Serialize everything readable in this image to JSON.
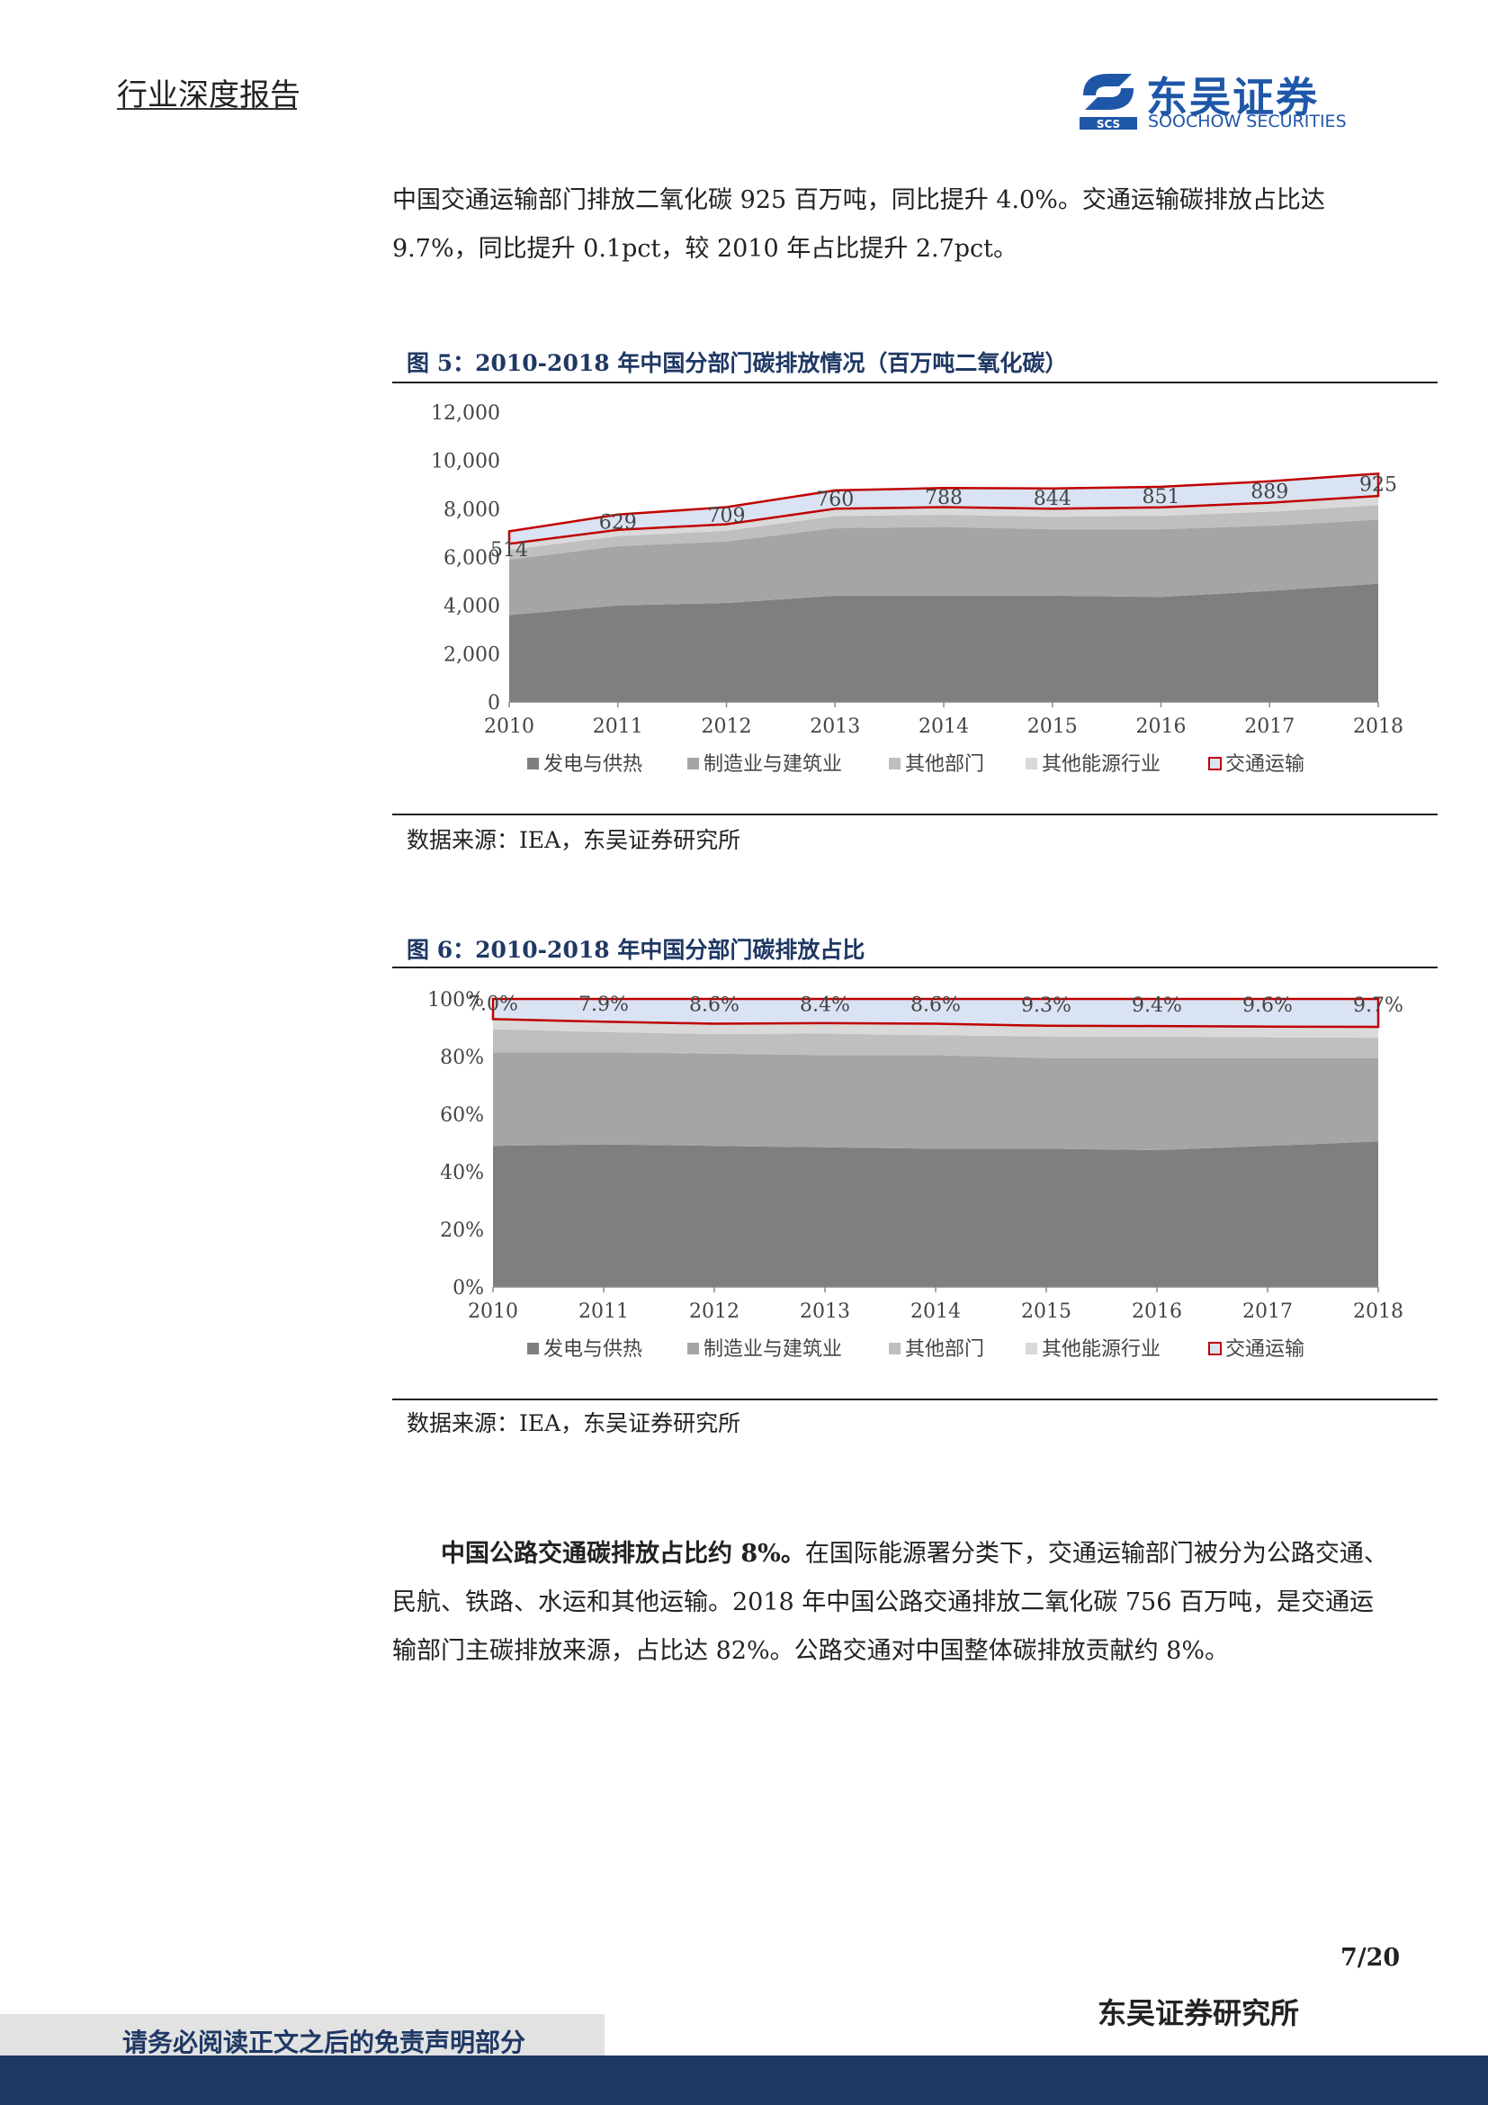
{
  "header": {
    "doc_type": "行业深度报告",
    "logo_cn": "东吴证券",
    "logo_en": "SOOCHOW SECURITIES",
    "logo_mark": "SCS"
  },
  "intro_paragraph": "中国交通运输部门排放二氧化碳 925 百万吨，同比提升 4.0%。交通运输碳排放占比达 9.7%，同比提升 0.1pct，较 2010 年占比提升 2.7pct。",
  "figure5": {
    "title": "图 5：2010-2018 年中国分部门碳排放情况（百万吨二氧化碳）",
    "source": "数据来源：IEA，东吴证券研究所"
  },
  "figure6": {
    "title": "图 6：2010-2018 年中国分部门碳排放占比",
    "source": "数据来源：IEA，东吴证券研究所"
  },
  "road_paragraph": {
    "lead": "中国公路交通碳排放占比约 8%。",
    "body": "在国际能源署分类下，交通运输部门被分为公路交通、民航、铁路、水运和其他运输。2018 年中国公路交通排放二氧化碳 756 百万吨，是交通运输部门主碳排放来源，占比达 82%。公路交通对中国整体碳排放贡献约 8%。"
  },
  "footer": {
    "page": "7/20",
    "org": "东吴证券研究所",
    "disclaimer": "请务必阅读正文之后的免责声明部分"
  },
  "colors": {
    "power": "#7f7f7f",
    "manufacturing": "#a5a5a5",
    "other_sectors": "#bfbfbf",
    "other_energy": "#d9d9d9",
    "transport_fill": "#dae3f3",
    "transport_border": "#c00000",
    "brand": "#1f57a8",
    "navy": "#1f3864"
  },
  "chart_data": [
    {
      "type": "area",
      "stacked": true,
      "x": [
        "2010",
        "2011",
        "2012",
        "2013",
        "2014",
        "2015",
        "2016",
        "2017",
        "2018"
      ],
      "ylim": [
        0,
        12000
      ],
      "yticks": [
        "0",
        "2,000",
        "4,000",
        "6,000",
        "8,000",
        "10,000",
        "12,000"
      ],
      "ytick_values": [
        0,
        2000,
        4000,
        6000,
        8000,
        10000,
        12000
      ],
      "series": [
        {
          "name": "发电与供热",
          "values": [
            3600,
            4000,
            4100,
            4400,
            4400,
            4400,
            4350,
            4600,
            4900
          ]
        },
        {
          "name": "制造业与建筑业",
          "values": [
            2300,
            2450,
            2550,
            2800,
            2850,
            2750,
            2800,
            2700,
            2650
          ]
        },
        {
          "name": "其他部门",
          "values": [
            400,
            420,
            440,
            500,
            500,
            520,
            560,
            580,
            600
          ]
        },
        {
          "name": "其他能源行业",
          "values": [
            250,
            260,
            270,
            300,
            320,
            330,
            350,
            370,
            380
          ]
        },
        {
          "name": "交通运输",
          "values": [
            514,
            629,
            709,
            760,
            788,
            844,
            851,
            889,
            925
          ],
          "labels": [
            "514",
            "629",
            "709",
            "760",
            "788",
            "844",
            "851",
            "889",
            "925"
          ]
        }
      ],
      "legend_position": "bottom"
    },
    {
      "type": "area",
      "stacked": true,
      "normalized": true,
      "x": [
        "2010",
        "2011",
        "2012",
        "2013",
        "2014",
        "2015",
        "2016",
        "2017",
        "2018"
      ],
      "ylim": [
        0,
        100
      ],
      "yticks": [
        "0%",
        "20%",
        "40%",
        "60%",
        "80%",
        "100%"
      ],
      "ytick_values": [
        0,
        20,
        40,
        60,
        80,
        100
      ],
      "series": [
        {
          "name": "发电与供热",
          "values": [
            49.0,
            49.5,
            49.0,
            48.5,
            48.0,
            48.0,
            47.5,
            49.0,
            50.5
          ]
        },
        {
          "name": "制造业与建筑业",
          "values": [
            32.5,
            32.0,
            32.0,
            32.0,
            32.5,
            31.5,
            32.0,
            30.5,
            29.0
          ]
        },
        {
          "name": "其他部门",
          "values": [
            8.0,
            7.0,
            6.8,
            7.5,
            6.9,
            7.5,
            7.4,
            7.2,
            7.0
          ]
        },
        {
          "name": "其他能源行业",
          "values": [
            3.5,
            3.6,
            3.6,
            3.6,
            4.0,
            3.7,
            3.7,
            3.7,
            3.8
          ]
        },
        {
          "name": "交通运输",
          "values": [
            7.0,
            7.9,
            8.6,
            8.4,
            8.6,
            9.3,
            9.4,
            9.6,
            9.7
          ],
          "labels": [
            "7.0%",
            "7.9%",
            "8.6%",
            "8.4%",
            "8.6%",
            "9.3%",
            "9.4%",
            "9.6%",
            "9.7%"
          ]
        }
      ],
      "legend_position": "bottom"
    }
  ]
}
